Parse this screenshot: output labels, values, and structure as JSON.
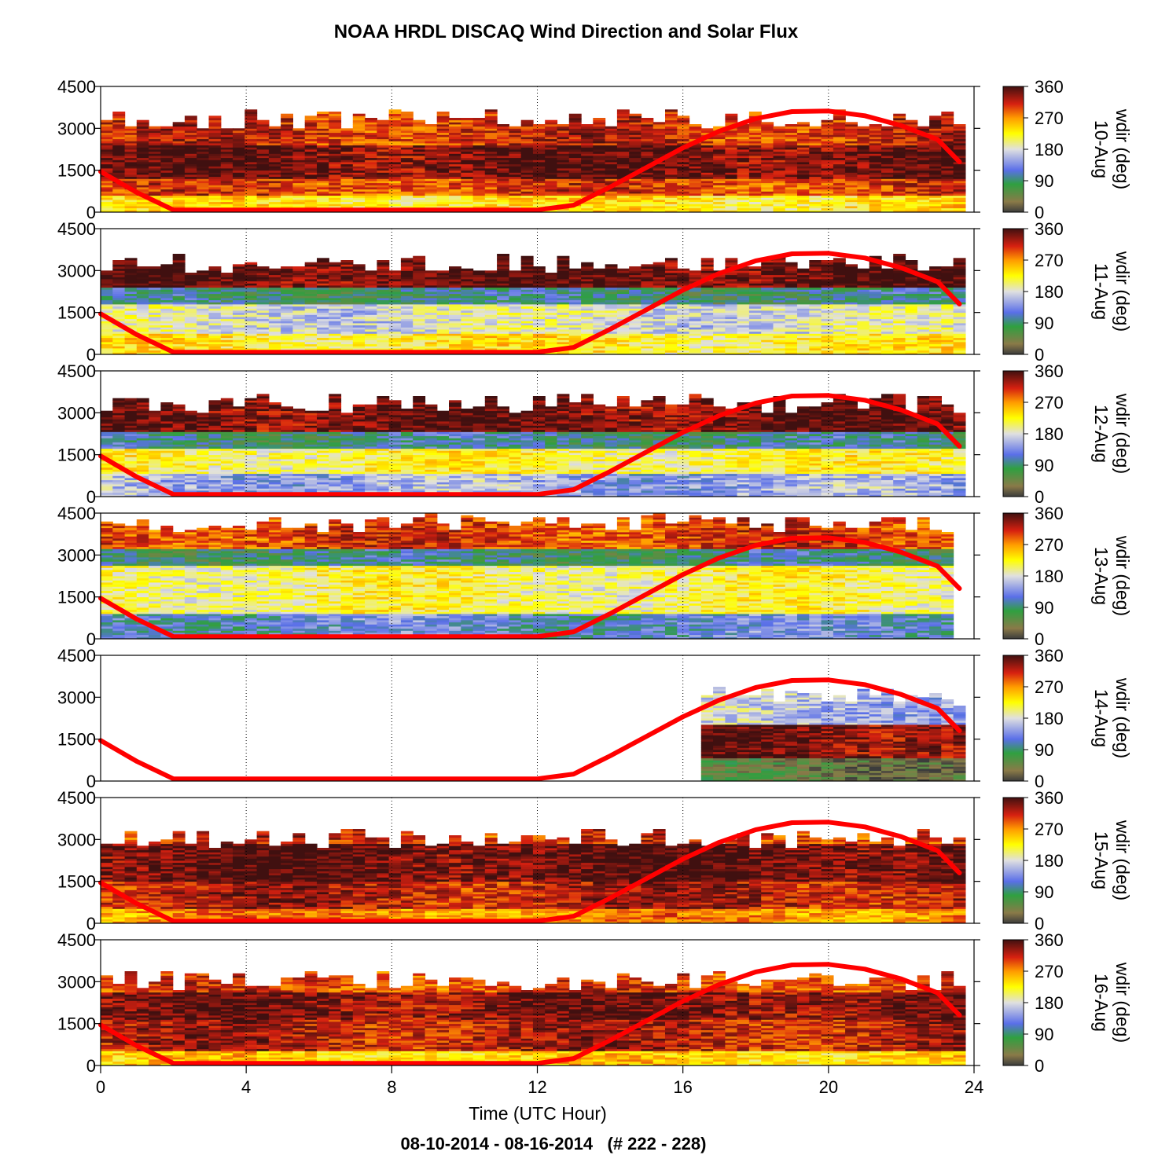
{
  "figure": {
    "title": "NOAA HRDL DISCAQ Wind Direction and Solar Flux",
    "xlabel": "Time (UTC Hour)",
    "footer": "08-10-2014 - 08-16-2014   (# 222 - 228)"
  },
  "chart_data": {
    "type": "heatmap",
    "title": "NOAA HRDL DISCAQ Wind Direction and Solar Flux",
    "xlabel": "Time (UTC Hour)",
    "xlim": [
      0,
      24
    ],
    "xticks": [
      0,
      4,
      8,
      12,
      16,
      20,
      24
    ],
    "ylim": [
      0,
      4500
    ],
    "yticks": [
      0,
      1500,
      3000,
      4500
    ],
    "grid_x": [
      4,
      8,
      12,
      16,
      20
    ],
    "colorbar": {
      "label": "wdir (deg)",
      "range": [
        0,
        360
      ],
      "ticks": [
        0,
        90,
        180,
        270,
        360
      ],
      "stops": [
        {
          "v": 0,
          "color": "#3c3c3c"
        },
        {
          "v": 30,
          "color": "#8a7a48"
        },
        {
          "v": 80,
          "color": "#2fa040"
        },
        {
          "v": 120,
          "color": "#5a6fe8"
        },
        {
          "v": 180,
          "color": "#e0e0e0"
        },
        {
          "v": 225,
          "color": "#ffff00"
        },
        {
          "v": 270,
          "color": "#ff9a00"
        },
        {
          "v": 310,
          "color": "#d62010"
        },
        {
          "v": 360,
          "color": "#401010"
        }
      ]
    },
    "solar_flux_color": "#ff0000",
    "panels": [
      {
        "date": "10-Aug",
        "layers": [
          {
            "top": 600,
            "wdir": 230
          },
          {
            "top": 1200,
            "wdir": 300
          },
          {
            "top": 2400,
            "wdir": 345
          },
          {
            "top": 3400,
            "wdir": 310
          }
        ],
        "top_alt": 3300,
        "t_range": [
          0,
          23.6
        ]
      },
      {
        "date": "11-Aug",
        "layers": [
          {
            "top": 700,
            "wdir": 225
          },
          {
            "top": 1800,
            "wdir": 180
          },
          {
            "top": 2400,
            "wdir": 90
          },
          {
            "top": 3300,
            "wdir": 350
          }
        ],
        "top_alt": 3200,
        "t_range": [
          0,
          23.6
        ]
      },
      {
        "date": "12-Aug",
        "layers": [
          {
            "top": 800,
            "wdir": 150
          },
          {
            "top": 1700,
            "wdir": 215
          },
          {
            "top": 2300,
            "wdir": 95
          },
          {
            "top": 3400,
            "wdir": 345
          }
        ],
        "top_alt": 3300,
        "t_range": [
          0,
          23.6
        ]
      },
      {
        "date": "13-Aug",
        "layers": [
          {
            "top": 900,
            "wdir": 120
          },
          {
            "top": 2600,
            "wdir": 210
          },
          {
            "top": 3200,
            "wdir": 90
          },
          {
            "top": 4200,
            "wdir": 300
          }
        ],
        "top_alt": 4100,
        "t_range": [
          0,
          23.1
        ]
      },
      {
        "date": "14-Aug",
        "layers": [
          {
            "top": 800,
            "wdir": 40
          },
          {
            "top": 2000,
            "wdir": 340
          },
          {
            "top": 3000,
            "wdir": 160
          }
        ],
        "top_alt": 3000,
        "t_range": [
          16.5,
          23.6
        ]
      },
      {
        "date": "15-Aug",
        "layers": [
          {
            "top": 500,
            "wdir": 270
          },
          {
            "top": 1500,
            "wdir": 320
          },
          {
            "top": 2800,
            "wdir": 350
          },
          {
            "top": 3600,
            "wdir": 305
          }
        ],
        "top_alt": 3000,
        "t_range": [
          0,
          23.6
        ]
      },
      {
        "date": "16-Aug",
        "layers": [
          {
            "top": 500,
            "wdir": 240
          },
          {
            "top": 1600,
            "wdir": 320
          },
          {
            "top": 2600,
            "wdir": 340
          },
          {
            "top": 3400,
            "wdir": 300
          }
        ],
        "top_alt": 3000,
        "t_range": [
          0,
          23.6
        ]
      }
    ],
    "solar_flux": {
      "y": [
        1450,
        700,
        80,
        80,
        80,
        80,
        80,
        80,
        80,
        80,
        80,
        80,
        80,
        250,
        900,
        1600,
        2300,
        2900,
        3350,
        3600,
        3620,
        3450,
        3100,
        2600,
        1800
      ],
      "x": [
        0,
        1,
        2,
        3,
        4,
        5,
        6,
        7,
        8,
        9,
        10,
        11,
        12,
        13,
        14,
        15,
        16,
        17,
        18,
        19,
        20,
        21,
        22,
        23,
        23.6
      ]
    }
  }
}
